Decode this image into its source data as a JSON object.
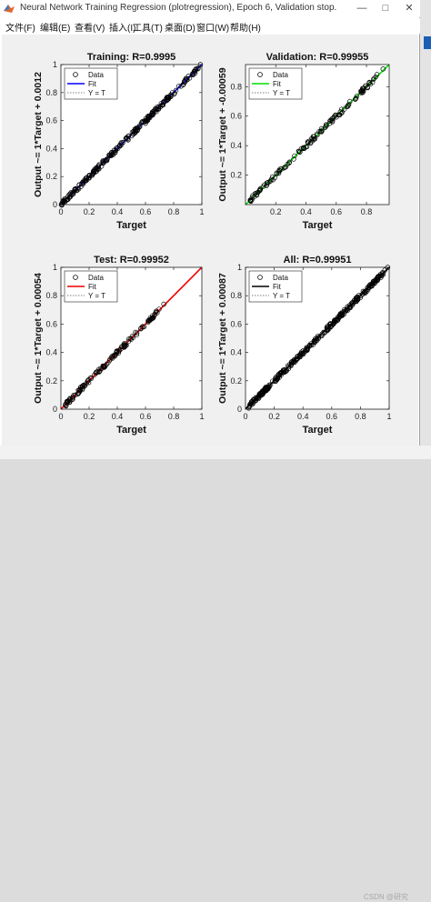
{
  "window": {
    "title": "Neural Network Training Regression (plotregression), Epoch 6, Validation stop.",
    "controls": {
      "minimize": "—",
      "maximize": "□",
      "close": "✕"
    }
  },
  "menu": [
    "文件(F)",
    "编辑(E)",
    "查看(V)",
    "插入(I)",
    "工具(T)",
    "桌面(D)",
    "窗口(W)",
    "帮助(H)"
  ],
  "watermark": "CSDN @研究",
  "colors": {
    "training": "#0000ff",
    "validation": "#00dd00",
    "test": "#ee0000",
    "all": "#000000",
    "background": "#f0f0f0"
  },
  "chart_data": [
    {
      "type": "scatter",
      "title": "Training: R=0.9995",
      "xlabel": "Target",
      "ylabel": "Output ~= 1*Target + 0.0012",
      "xlim": [
        0,
        1
      ],
      "ylim": [
        0,
        1
      ],
      "xticks": [
        "0",
        "0.2",
        "0.4",
        "0.6",
        "0.8",
        "1"
      ],
      "yticks": [
        "0",
        "0.2",
        "0.4",
        "0.6",
        "0.8",
        "1"
      ],
      "fit": {
        "slope": 1,
        "intercept": 0.0012
      },
      "fit_color": "#0000ff",
      "legend": [
        "Data",
        "Fit",
        "Y = T"
      ],
      "legend_position": "top-left",
      "data_range": [
        0,
        0.98
      ],
      "outliers": [
        [
          0.02,
          0.03
        ],
        [
          0.99,
          1.0
        ],
        [
          0.96,
          0.97
        ],
        [
          0.6,
          0.58
        ]
      ]
    },
    {
      "type": "scatter",
      "title": "Validation: R=0.99955",
      "xlabel": "Target",
      "ylabel": "Output ~= 1*Target + -0.00059",
      "xlim": [
        0,
        0.95
      ],
      "ylim": [
        0,
        0.95
      ],
      "xticks": [
        "0.2",
        "0.4",
        "0.6",
        "0.8"
      ],
      "yticks": [
        "0.2",
        "0.4",
        "0.6",
        "0.8"
      ],
      "fit": {
        "slope": 1,
        "intercept": -0.00059
      },
      "fit_color": "#00dd00",
      "legend": [
        "Data",
        "Fit",
        "Y = T"
      ],
      "legend_position": "top-left",
      "data_range": [
        0.03,
        0.88
      ],
      "outliers": [
        [
          0.91,
          0.92
        ],
        [
          0.82,
          0.83
        ],
        [
          0.37,
          0.38
        ]
      ]
    },
    {
      "type": "scatter",
      "title": "Test: R=0.99952",
      "xlabel": "Target",
      "ylabel": "Output ~= 1*Target + 0.00054",
      "xlim": [
        0,
        1
      ],
      "ylim": [
        0,
        1
      ],
      "xticks": [
        "0",
        "0.2",
        "0.4",
        "0.6",
        "0.8",
        "1"
      ],
      "yticks": [
        "0",
        "0.2",
        "0.4",
        "0.6",
        "0.8",
        "1"
      ],
      "fit": {
        "slope": 1,
        "intercept": 0.00054
      },
      "fit_color": "#ee0000",
      "legend": [
        "Data",
        "Fit",
        "Y = T"
      ],
      "legend_position": "top-left",
      "data_range": [
        0.03,
        0.7
      ],
      "outliers": [
        [
          0.73,
          0.74
        ],
        [
          0.05,
          0.05
        ]
      ]
    },
    {
      "type": "scatter",
      "title": "All: R=0.99951",
      "xlabel": "Target",
      "ylabel": "Output ~= 1*Target + 0.00087",
      "xlim": [
        0,
        1
      ],
      "ylim": [
        0,
        1
      ],
      "xticks": [
        "0",
        "0.2",
        "0.4",
        "0.6",
        "0.8",
        "1"
      ],
      "yticks": [
        "0",
        "0.2",
        "0.4",
        "0.6",
        "0.8",
        "1"
      ],
      "fit": {
        "slope": 1,
        "intercept": 0.00087
      },
      "fit_color": "#000000",
      "legend": [
        "Data",
        "Fit",
        "Y = T"
      ],
      "legend_position": "top-left",
      "data_range": [
        0.02,
        0.96
      ],
      "outliers": [
        [
          0.99,
          1.0
        ],
        [
          0.97,
          0.98
        ],
        [
          0.92,
          0.93
        ]
      ]
    }
  ]
}
